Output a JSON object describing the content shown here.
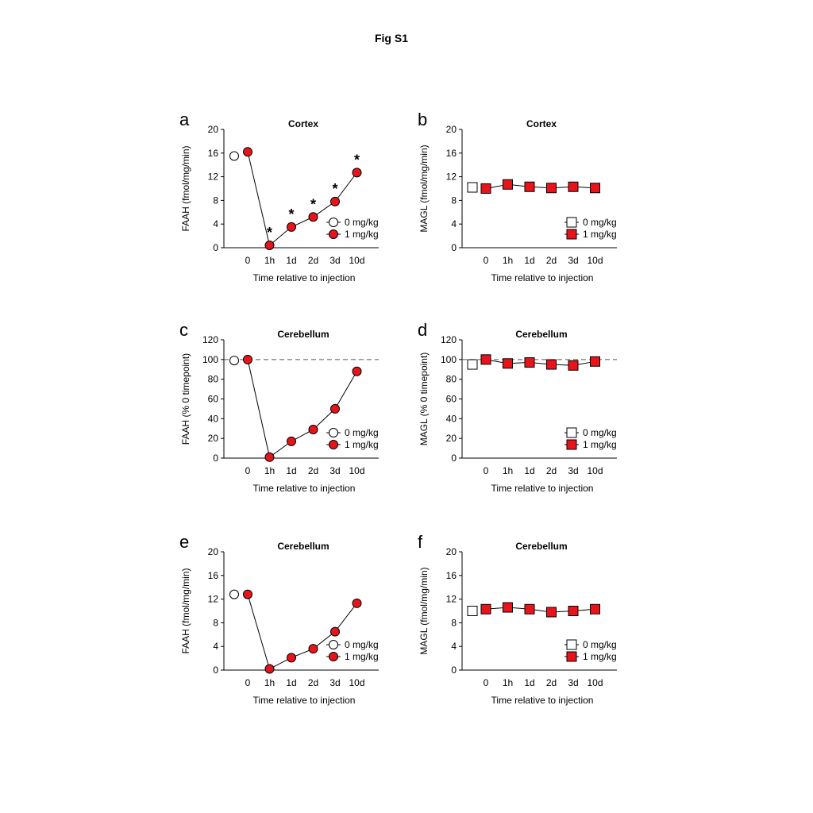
{
  "figure_title": "Fig S1",
  "chart_data": [
    {
      "panel": "a",
      "type": "line",
      "title": "Cortex",
      "ylabel": "FAAH (fmol/mg/min)",
      "xlabel": "Time relative to injection",
      "yticks": [
        "0",
        "4",
        "8",
        "12",
        "16",
        "20"
      ],
      "ylim": [
        0,
        20
      ],
      "categories": [
        "0",
        "1h",
        "1d",
        "2d",
        "3d",
        "10d"
      ],
      "marker": "circle",
      "reference_line": null,
      "legend_placement": "lower-right",
      "series": [
        {
          "name": "0 mg/kg",
          "color": "#ffffff",
          "points": [
            {
              "x": "0",
              "y": 15.5
            }
          ]
        },
        {
          "name": "1 mg/kg",
          "color": "#e8141b",
          "points": [
            {
              "x": "0",
              "y": 16.2
            },
            {
              "x": "1h",
              "y": 0.4
            },
            {
              "x": "1d",
              "y": 3.5
            },
            {
              "x": "2d",
              "y": 5.2
            },
            {
              "x": "3d",
              "y": 7.8
            },
            {
              "x": "10d",
              "y": 12.7
            }
          ]
        }
      ],
      "significance": [
        {
          "x": "1h",
          "label": "*"
        },
        {
          "x": "1d",
          "label": "*"
        },
        {
          "x": "2d",
          "label": "*"
        },
        {
          "x": "3d",
          "label": "*"
        },
        {
          "x": "10d",
          "label": "*"
        }
      ]
    },
    {
      "panel": "b",
      "type": "line",
      "title": "Cortex",
      "ylabel": "MAGL (fmol/mg/min)",
      "xlabel": "Time relative to injection",
      "yticks": [
        "0",
        "4",
        "8",
        "12",
        "16",
        "20"
      ],
      "ylim": [
        0,
        20
      ],
      "categories": [
        "0",
        "1h",
        "1d",
        "2d",
        "3d",
        "10d"
      ],
      "marker": "square",
      "reference_line": null,
      "legend_placement": "lower-right",
      "series": [
        {
          "name": "0 mg/kg",
          "color": "#ffffff",
          "points": [
            {
              "x": "0",
              "y": 10.2
            }
          ]
        },
        {
          "name": "1 mg/kg",
          "color": "#e8141b",
          "points": [
            {
              "x": "0",
              "y": 10.0
            },
            {
              "x": "1h",
              "y": 10.7
            },
            {
              "x": "1d",
              "y": 10.3
            },
            {
              "x": "2d",
              "y": 10.1
            },
            {
              "x": "3d",
              "y": 10.3
            },
            {
              "x": "10d",
              "y": 10.1
            }
          ]
        }
      ],
      "significance": []
    },
    {
      "panel": "c",
      "type": "line",
      "title": "Cerebellum",
      "ylabel": "FAAH (% 0 timepoint)",
      "xlabel": "Time relative to injection",
      "yticks": [
        "0",
        "20",
        "40",
        "60",
        "80",
        "100",
        "120"
      ],
      "ylim": [
        0,
        120
      ],
      "categories": [
        "0",
        "1h",
        "1d",
        "2d",
        "3d",
        "10d"
      ],
      "marker": "circle",
      "reference_line": 100,
      "legend_placement": "lower-right",
      "series": [
        {
          "name": "0 mg/kg",
          "color": "#ffffff",
          "points": [
            {
              "x": "0",
              "y": 99
            }
          ]
        },
        {
          "name": "1 mg/kg",
          "color": "#e8141b",
          "points": [
            {
              "x": "0",
              "y": 100
            },
            {
              "x": "1h",
              "y": 1
            },
            {
              "x": "1d",
              "y": 17
            },
            {
              "x": "2d",
              "y": 29
            },
            {
              "x": "3d",
              "y": 50
            },
            {
              "x": "10d",
              "y": 88
            }
          ]
        }
      ],
      "significance": []
    },
    {
      "panel": "d",
      "type": "line",
      "title": "Cerebellum",
      "ylabel": "MAGL (% 0 timepoint)",
      "xlabel": "Time relative to injection",
      "yticks": [
        "0",
        "20",
        "40",
        "60",
        "80",
        "100",
        "120"
      ],
      "ylim": [
        0,
        120
      ],
      "categories": [
        "0",
        "1h",
        "1d",
        "2d",
        "3d",
        "10d"
      ],
      "marker": "square",
      "reference_line": 100,
      "legend_placement": "lower-right",
      "series": [
        {
          "name": "0 mg/kg",
          "color": "#ffffff",
          "points": [
            {
              "x": "0",
              "y": 95
            }
          ]
        },
        {
          "name": "1 mg/kg",
          "color": "#e8141b",
          "points": [
            {
              "x": "0",
              "y": 100
            },
            {
              "x": "1h",
              "y": 96
            },
            {
              "x": "1d",
              "y": 97
            },
            {
              "x": "2d",
              "y": 95
            },
            {
              "x": "3d",
              "y": 94
            },
            {
              "x": "10d",
              "y": 98
            }
          ]
        }
      ],
      "significance": []
    },
    {
      "panel": "e",
      "type": "line",
      "title": "Cerebellum",
      "ylabel": "FAAH (fmol/mg/min)",
      "xlabel": "Time relative to injection",
      "yticks": [
        "0",
        "4",
        "8",
        "12",
        "16",
        "20"
      ],
      "ylim": [
        0,
        20
      ],
      "categories": [
        "0",
        "1h",
        "1d",
        "2d",
        "3d",
        "10d"
      ],
      "marker": "circle",
      "reference_line": null,
      "legend_placement": "lower-right",
      "series": [
        {
          "name": "0 mg/kg",
          "color": "#ffffff",
          "points": [
            {
              "x": "0",
              "y": 12.8
            }
          ]
        },
        {
          "name": "1 mg/kg",
          "color": "#e8141b",
          "points": [
            {
              "x": "0",
              "y": 12.8
            },
            {
              "x": "1h",
              "y": 0.2
            },
            {
              "x": "1d",
              "y": 2.1
            },
            {
              "x": "2d",
              "y": 3.6
            },
            {
              "x": "3d",
              "y": 6.5
            },
            {
              "x": "10d",
              "y": 11.3
            }
          ]
        }
      ],
      "significance": []
    },
    {
      "panel": "f",
      "type": "line",
      "title": "Cerebellum",
      "ylabel": "MAGL (fmol/mg/min)",
      "xlabel": "Time relative to injection",
      "yticks": [
        "0",
        "4",
        "8",
        "12",
        "16",
        "20"
      ],
      "ylim": [
        0,
        20
      ],
      "categories": [
        "0",
        "1h",
        "1d",
        "2d",
        "3d",
        "10d"
      ],
      "marker": "square",
      "reference_line": null,
      "legend_placement": "lower-right",
      "series": [
        {
          "name": "0 mg/kg",
          "color": "#ffffff",
          "points": [
            {
              "x": "0",
              "y": 10.0
            }
          ]
        },
        {
          "name": "1 mg/kg",
          "color": "#e8141b",
          "points": [
            {
              "x": "0",
              "y": 10.3
            },
            {
              "x": "1h",
              "y": 10.6
            },
            {
              "x": "1d",
              "y": 10.3
            },
            {
              "x": "2d",
              "y": 9.8
            },
            {
              "x": "3d",
              "y": 10.0
            },
            {
              "x": "10d",
              "y": 10.3
            }
          ]
        }
      ],
      "significance": []
    }
  ]
}
